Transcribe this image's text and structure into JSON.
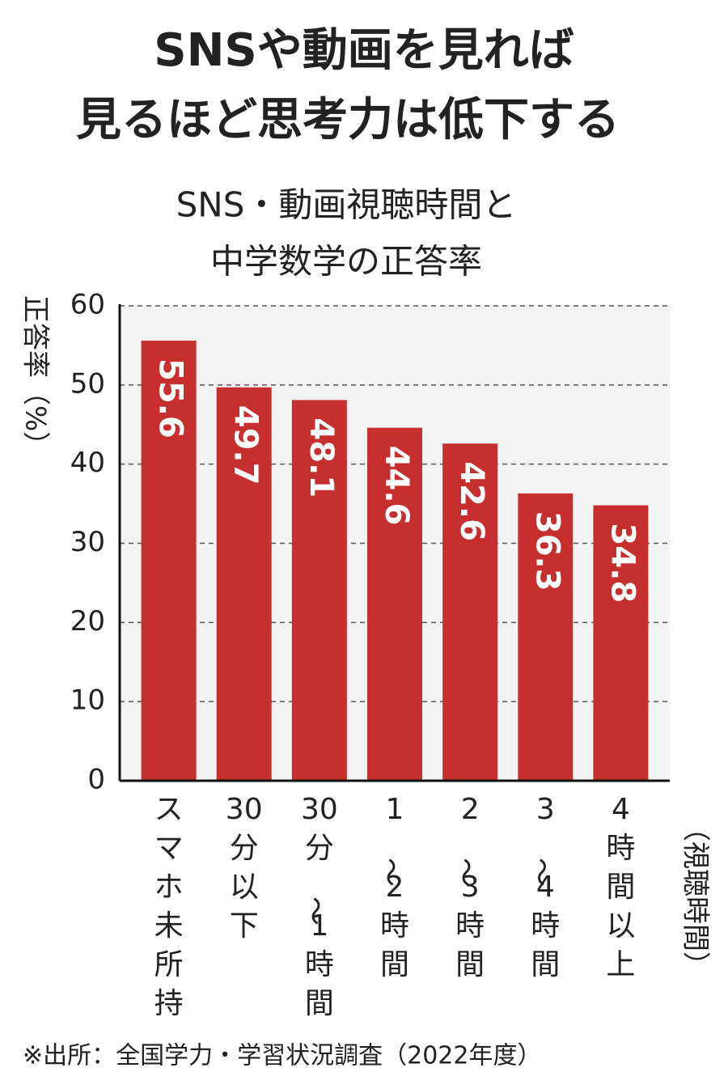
{
  "chart_data": {
    "type": "bar",
    "title": [
      "SNSや動画を見れば",
      "見るほど思考力は低下する"
    ],
    "subtitle": [
      "SNS・動画視聴時間と",
      "中学数学の正答率"
    ],
    "y_label": "正答率（%）",
    "x_label": "（視聴時間）",
    "categories": [
      "スマホ未所持",
      "30分以下",
      "30分〜1時間",
      "1〜2時間",
      "2〜3時間",
      "3〜4時間",
      "4時間以上"
    ],
    "values": [
      55.6,
      49.7,
      48.1,
      44.6,
      42.6,
      36.3,
      34.8
    ],
    "color": "#c62f2e",
    "ylim": [
      0,
      60
    ],
    "yticks": [
      0,
      10,
      20,
      30,
      40,
      50,
      60
    ],
    "grid": true,
    "note": "※出所：全国学力・学習状況調査（2022年度）"
  }
}
